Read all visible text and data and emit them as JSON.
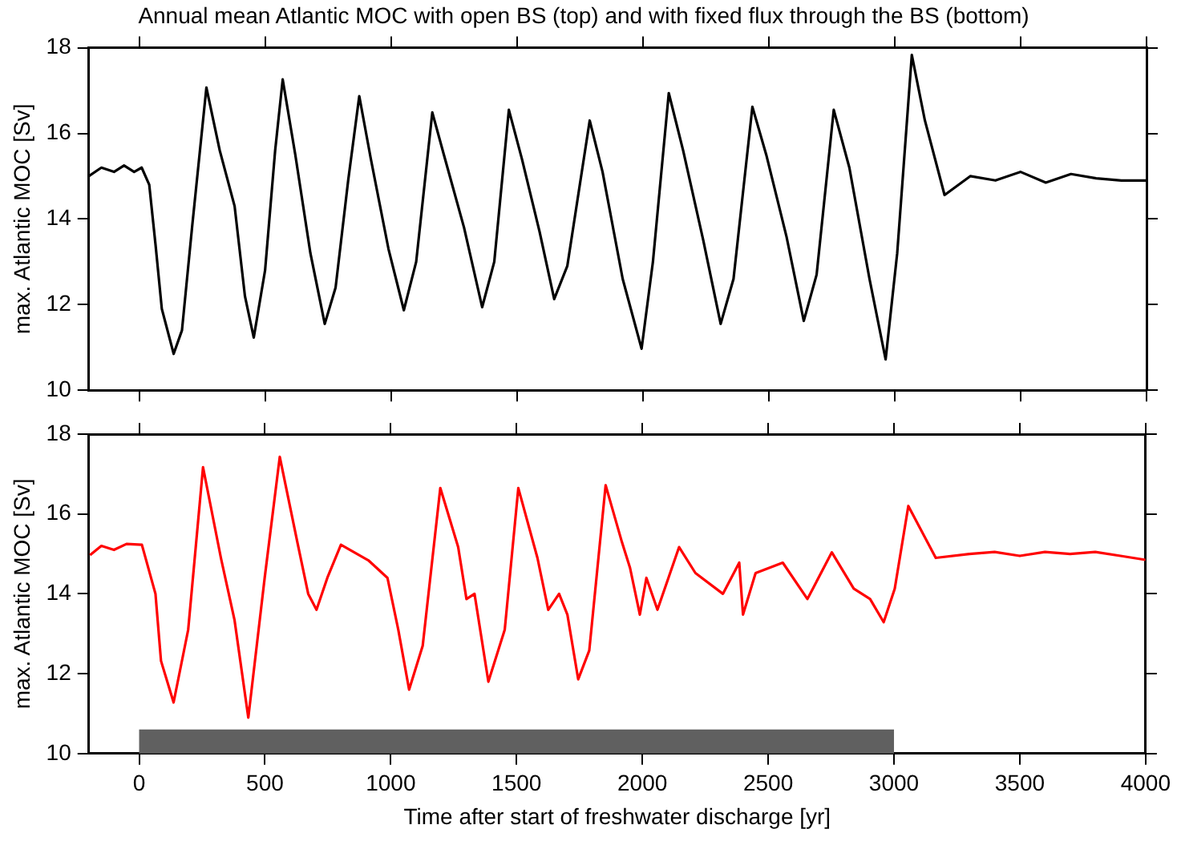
{
  "chart_data": [
    {
      "type": "line",
      "title": "Annual mean Atlantic MOC with open BS (top) and with fixed flux through the BS (bottom)",
      "ylabel": "max. Atlantic MOC [Sv]",
      "x": [
        -200,
        -150,
        -100,
        -60,
        -20,
        10,
        40,
        65,
        90,
        137,
        170,
        210,
        267,
        320,
        379,
        420,
        455,
        500,
        540,
        570,
        620,
        680,
        737,
        780,
        830,
        874,
        920,
        990,
        1051,
        1100,
        1164,
        1210,
        1290,
        1362,
        1410,
        1468,
        1520,
        1590,
        1648,
        1700,
        1789,
        1840,
        1920,
        1995,
        2040,
        2103,
        2160,
        2240,
        2309,
        2360,
        2435,
        2490,
        2570,
        2639,
        2690,
        2758,
        2820,
        2900,
        2964,
        3010,
        3068,
        3120,
        3198,
        3300,
        3400,
        3500,
        3600,
        3700,
        3800,
        3900,
        4000
      ],
      "series": [
        {
          "color": "#000000",
          "values": [
            15.0,
            15.2,
            15.1,
            15.25,
            15.1,
            15.2,
            14.8,
            13.4,
            11.9,
            10.85,
            11.4,
            13.8,
            17.07,
            15.6,
            14.3,
            12.2,
            11.23,
            12.8,
            15.6,
            17.26,
            15.5,
            13.2,
            11.55,
            12.4,
            14.9,
            16.87,
            15.4,
            13.3,
            11.87,
            13.0,
            16.49,
            15.5,
            13.8,
            11.94,
            13.0,
            16.55,
            15.4,
            13.7,
            12.13,
            12.9,
            16.3,
            15.1,
            12.6,
            10.97,
            13.0,
            16.94,
            15.6,
            13.5,
            11.55,
            12.6,
            16.62,
            15.5,
            13.6,
            11.62,
            12.7,
            16.55,
            15.2,
            12.6,
            10.72,
            13.2,
            17.83,
            16.3,
            14.56,
            15.0,
            14.9,
            15.1,
            14.85,
            15.05,
            14.95,
            14.9,
            14.9
          ]
        }
      ],
      "xlim": [
        -200,
        4000
      ],
      "xticks": [
        0,
        500,
        1000,
        1500,
        2000,
        2500,
        3000,
        3500,
        4000
      ],
      "ylim": [
        10,
        18
      ],
      "yticks": [
        10,
        12,
        14,
        16,
        18
      ],
      "grid": false,
      "legend": false,
      "marker": "none",
      "line_style": "solid",
      "tick_labels": "y"
    },
    {
      "type": "line",
      "xlabel": "Time after start of freshwater discharge [yr]",
      "ylabel": "max. Atlantic MOC [Sv]",
      "x": [
        -195,
        -150,
        -100,
        -50,
        11,
        65,
        87,
        137,
        195,
        254,
        325,
        379,
        434,
        499,
        559,
        629,
        672,
        705,
        748,
        802,
        911,
        987,
        1030,
        1073,
        1127,
        1197,
        1268,
        1301,
        1333,
        1388,
        1453,
        1507,
        1583,
        1626,
        1669,
        1702,
        1745,
        1789,
        1854,
        1919,
        1951,
        1990,
        2016,
        2060,
        2146,
        2211,
        2320,
        2385,
        2400,
        2450,
        2558,
        2656,
        2753,
        2840,
        2905,
        2959,
        3003,
        3057,
        3166,
        3300,
        3400,
        3500,
        3600,
        3700,
        3800,
        3900,
        4000
      ],
      "series": [
        {
          "color": "#ff0000",
          "values": [
            14.97,
            15.2,
            15.1,
            15.25,
            15.23,
            14.0,
            12.32,
            11.28,
            13.1,
            17.17,
            14.9,
            13.35,
            10.9,
            14.4,
            17.43,
            15.29,
            14.0,
            13.6,
            14.4,
            15.23,
            14.84,
            14.4,
            13.1,
            11.6,
            12.7,
            16.65,
            15.17,
            13.87,
            14.0,
            11.8,
            13.1,
            16.65,
            14.9,
            13.6,
            14.0,
            13.48,
            11.86,
            12.58,
            16.72,
            15.29,
            14.65,
            13.48,
            14.4,
            13.6,
            15.17,
            14.52,
            14.0,
            14.78,
            13.48,
            14.52,
            14.78,
            13.87,
            15.04,
            14.13,
            13.87,
            13.29,
            14.13,
            16.2,
            14.9,
            15.0,
            15.05,
            14.95,
            15.05,
            15.0,
            15.05,
            14.95,
            14.85
          ]
        }
      ],
      "bands": [
        {
          "axis": "x",
          "from": 0,
          "to": 3000,
          "color": "#606060"
        }
      ],
      "xlim": [
        -200,
        4000
      ],
      "xticks": [
        0,
        500,
        1000,
        1500,
        2000,
        2500,
        3000,
        3500,
        4000
      ],
      "ylim": [
        10,
        18
      ],
      "yticks": [
        10,
        12,
        14,
        16,
        18
      ],
      "grid": false,
      "legend": false,
      "marker": "none",
      "line_style": "solid"
    }
  ]
}
